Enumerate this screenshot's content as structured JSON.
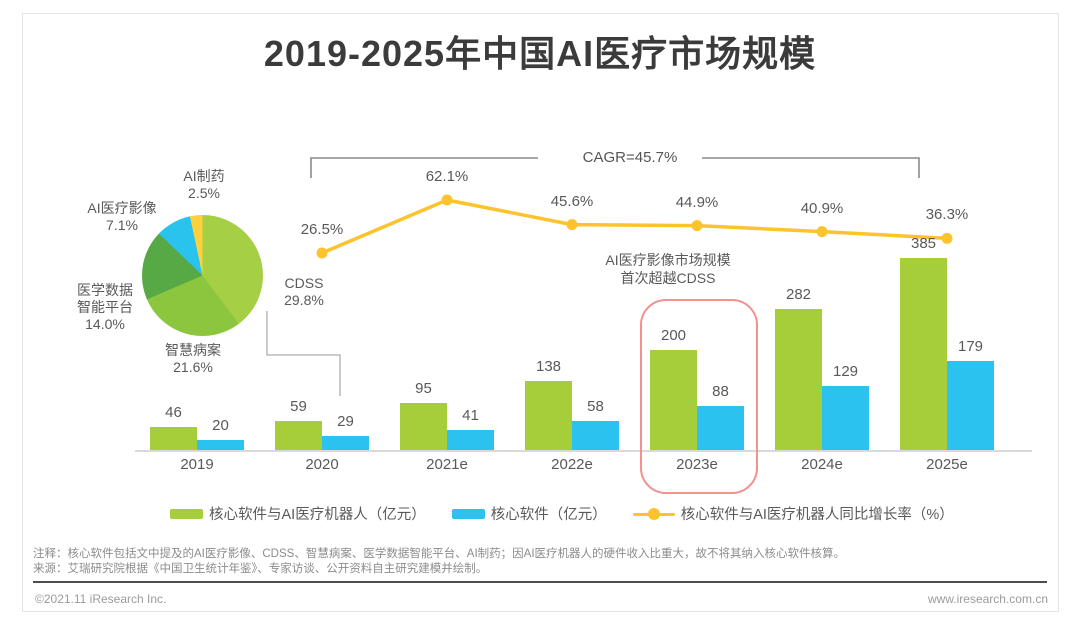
{
  "title": "2019-2025年中国AI医疗市场规模",
  "colors": {
    "bar_green": "#a6ce3b",
    "bar_blue": "#2bc2ef",
    "line_yellow": "#fcc32d",
    "highlight_pink": "#f2918d",
    "pie_cdss": "#a5cf44",
    "pie_record": "#8cc63f",
    "pie_platform": "#57a946",
    "pie_imaging": "#29c3ee",
    "pie_pharma": "#fdd13b"
  },
  "pie": {
    "slices": [
      {
        "label": "CDSS",
        "label_lines": [
          "CDSS"
        ],
        "value": 29.8,
        "value_label": "29.8%",
        "color": "#a5cf44"
      },
      {
        "label": "智慧病案",
        "label_lines": [
          "智慧病案"
        ],
        "value": 21.6,
        "value_label": "21.6%",
        "color": "#8cc63f"
      },
      {
        "label": "医学数据智能平台",
        "label_lines": [
          "医学数据",
          "智能平台"
        ],
        "value": 14.0,
        "value_label": "14.0%",
        "color": "#57a946"
      },
      {
        "label": "AI医疗影像",
        "label_lines": [
          "AI医疗影像"
        ],
        "value": 7.1,
        "value_label": "7.1%",
        "color": "#29c3ee"
      },
      {
        "label": "AI制药",
        "label_lines": [
          "AI制药"
        ],
        "value": 2.5,
        "value_label": "2.5%",
        "color": "#fdd13b"
      }
    ]
  },
  "chart_data": {
    "type": "combo",
    "categories": [
      "2019",
      "2020",
      "2021e",
      "2022e",
      "2023e",
      "2024e",
      "2025e"
    ],
    "series": [
      {
        "name": "核心软件与AI医疗机器人（亿元）",
        "type": "bar",
        "color": "#a6ce3b",
        "values": [
          46,
          59,
          95,
          138,
          200,
          282,
          385
        ]
      },
      {
        "name": "核心软件（亿元）",
        "type": "bar",
        "color": "#2bc2ef",
        "values": [
          20,
          29,
          41,
          58,
          88,
          129,
          179
        ]
      },
      {
        "name": "核心软件与AI医疗机器人同比增长率（%）",
        "type": "line",
        "color": "#fcc32d",
        "values": [
          null,
          26.5,
          62.1,
          45.6,
          44.9,
          40.9,
          36.3
        ]
      }
    ],
    "title": "2019-2025年中国AI医疗市场规模",
    "xlabel": "",
    "ylabel": "",
    "grid": false,
    "legend_position": "bottom",
    "pie_breakdown_2020": {
      "CDSS": 29.8,
      "智慧病案": 21.6,
      "医学数据智能平台": 14.0,
      "AI医疗影像": 7.1,
      "AI制药": 2.5
    }
  },
  "cagr_label": "CAGR=45.7%",
  "annotation": {
    "lines": [
      "AI医疗影像市场规模",
      "首次超越CDSS"
    ],
    "highlighted_category": "2023e"
  },
  "legend": {
    "items": [
      {
        "label": "核心软件与AI医疗机器人（亿元）",
        "swatch": "green-bar"
      },
      {
        "label": "核心软件（亿元）",
        "swatch": "blue-bar"
      },
      {
        "label": "核心软件与AI医疗机器人同比增长率（%）",
        "swatch": "yellow-line"
      }
    ]
  },
  "notes": {
    "note": "注释：核心软件包括文中提及的AI医疗影像、CDSS、智慧病案、医学数据智能平台、AI制药；因AI医疗机器人的硬件收入比重大，故不将其纳入核心软件核算。",
    "source": "来源：艾瑞研究院根据《中国卫生统计年鉴》、专家访谈、公开资料自主研究建模并绘制。"
  },
  "footer": {
    "copyright": "©2021.11 iResearch Inc.",
    "website": "www.iresearch.com.cn"
  }
}
